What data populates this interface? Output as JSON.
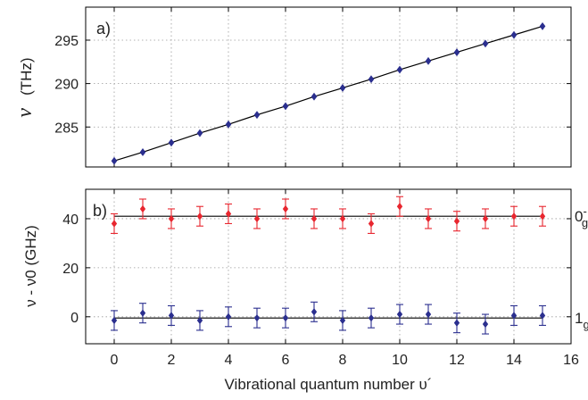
{
  "chart_data": [
    {
      "type": "line",
      "panel_label": "a)",
      "ylabel_symbol": "ν",
      "ylabel_unit": "(THz)",
      "xlim": [
        -1,
        16
      ],
      "ylim": [
        280.4,
        298.8
      ],
      "yticks": [
        285,
        290,
        295
      ],
      "xticks": [
        0,
        2,
        4,
        6,
        8,
        10,
        12,
        14,
        16
      ],
      "grid": true,
      "series": [
        {
          "color": "#2b2f8f",
          "marker": "diamond",
          "x": [
            0,
            1,
            2,
            3,
            4,
            5,
            6,
            7,
            8,
            9,
            10,
            11,
            12,
            13,
            14,
            15
          ],
          "y": [
            281.1,
            282.1,
            283.2,
            284.3,
            285.3,
            286.4,
            287.4,
            288.5,
            289.5,
            290.5,
            291.6,
            292.6,
            293.6,
            294.6,
            295.6,
            296.6
          ]
        }
      ]
    },
    {
      "type": "scatter",
      "panel_label": "b)",
      "ylabel": "ν - ν0  (GHz)",
      "xlabel": "Vibrational quantum number υ´",
      "xlim": [
        -1,
        16
      ],
      "ylim": [
        -11,
        52
      ],
      "yticks": [
        0,
        20,
        40
      ],
      "xticks": [
        0,
        2,
        4,
        6,
        8,
        10,
        12,
        14,
        16
      ],
      "grid": true,
      "series": [
        {
          "label_main": "0",
          "label_sup": "-",
          "label_sub": "g",
          "color": "#e8262f",
          "fit_value": 41,
          "x": [
            0,
            1,
            2,
            3,
            4,
            5,
            6,
            7,
            8,
            9,
            10,
            11,
            12,
            13,
            14,
            15
          ],
          "y": [
            38,
            44,
            40,
            41,
            42,
            40,
            44,
            40,
            40,
            38,
            45,
            40,
            39,
            40,
            41,
            41
          ],
          "yerr": [
            4,
            4,
            4,
            4,
            4,
            4,
            4,
            4,
            4,
            4,
            4,
            4,
            4,
            4,
            4,
            4
          ]
        },
        {
          "label_main": "1",
          "label_sub": "g",
          "color": "#2b2f8f",
          "fit_value": -0.5,
          "x": [
            0,
            1,
            2,
            3,
            4,
            5,
            6,
            7,
            8,
            9,
            10,
            11,
            12,
            13,
            14,
            15
          ],
          "y": [
            -1.5,
            1.5,
            0.5,
            -1.5,
            0,
            -0.5,
            -0.5,
            2,
            -1.5,
            -0.5,
            1,
            1,
            -2.5,
            -3,
            0.5,
            0.5
          ],
          "yerr": [
            4,
            4,
            4,
            4,
            4,
            4,
            4,
            4,
            4,
            4,
            4,
            4,
            4,
            4,
            4,
            4
          ]
        }
      ]
    }
  ]
}
